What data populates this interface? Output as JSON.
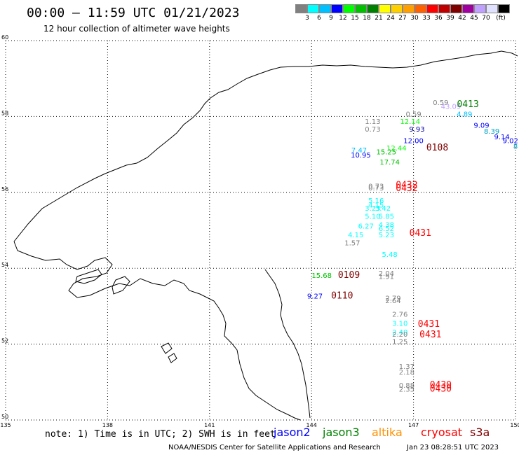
{
  "header": {
    "title": "00:00 – 11:59 UTC 01/21/2023",
    "subtitle": "12 hour collection of altimeter wave heights"
  },
  "legend": {
    "colors": [
      "#808080",
      "#00ffff",
      "#00c0ff",
      "#0000ff",
      "#00ff00",
      "#00c000",
      "#008000",
      "#ffff00",
      "#ffd000",
      "#ffa000",
      "#ff6000",
      "#ff0000",
      "#c00000",
      "#800000",
      "#a000a0",
      "#c0a0ff",
      "#e0e0ff",
      "#000000"
    ],
    "ticks": [
      "3",
      "6",
      "9",
      "12",
      "15",
      "18",
      "21",
      "24",
      "27",
      "30",
      "33",
      "36",
      "39",
      "42",
      "45",
      "70",
      "(ft)"
    ]
  },
  "map": {
    "lat_labels": [
      "60",
      "58",
      "56",
      "54",
      "52",
      "50"
    ],
    "lon_labels": [
      "135",
      "138",
      "141",
      "144",
      "147",
      "150"
    ],
    "observations": [
      {
        "text": "0.59",
        "lon": 147.8,
        "lat": 58.3,
        "color": "#808080"
      },
      {
        "text": "43.09",
        "lon": 148.1,
        "lat": 58.2,
        "color": "#c0a0ff"
      },
      {
        "text": "0.59",
        "lon": 147.0,
        "lat": 58.0,
        "color": "#808080"
      },
      {
        "text": "4.89",
        "lon": 148.5,
        "lat": 58.0,
        "color": "#00c0ff"
      },
      {
        "text": "1.13",
        "lon": 145.8,
        "lat": 57.8,
        "color": "#808080"
      },
      {
        "text": "12.14",
        "lon": 146.9,
        "lat": 57.8,
        "color": "#00ff00"
      },
      {
        "text": "0.73",
        "lon": 145.8,
        "lat": 57.6,
        "color": "#808080"
      },
      {
        "text": "9.93",
        "lon": 147.1,
        "lat": 57.6,
        "color": "#0000a0"
      },
      {
        "text": "9.09",
        "lon": 149.0,
        "lat": 57.7,
        "color": "#0000ff"
      },
      {
        "text": "8.39",
        "lon": 149.3,
        "lat": 57.55,
        "color": "#00a0c0"
      },
      {
        "text": "12.00",
        "lon": 147.0,
        "lat": 57.3,
        "color": "#0000ff"
      },
      {
        "text": "9.14",
        "lon": 149.6,
        "lat": 57.4,
        "color": "#0000ff"
      },
      {
        "text": "9.02",
        "lon": 149.85,
        "lat": 57.3,
        "color": "#0000ff"
      },
      {
        "text": "8",
        "lon": 150.0,
        "lat": 57.15,
        "color": "#00a0c0"
      },
      {
        "text": "7.47",
        "lon": 145.4,
        "lat": 57.05,
        "color": "#00c0ff"
      },
      {
        "text": "12.44",
        "lon": 146.5,
        "lat": 57.1,
        "color": "#00ff00"
      },
      {
        "text": "15.25",
        "lon": 146.2,
        "lat": 57.0,
        "color": "#00c000"
      },
      {
        "text": "10.95",
        "lon": 145.45,
        "lat": 56.92,
        "color": "#0000ff"
      },
      {
        "text": "17.74",
        "lon": 146.3,
        "lat": 56.73,
        "color": "#00c000"
      },
      {
        "text": "0.73",
        "lon": 145.9,
        "lat": 56.1,
        "color": "#808080"
      },
      {
        "text": "0.73",
        "lon": 145.9,
        "lat": 56.05,
        "color": "#808080"
      },
      {
        "text": "5.16",
        "lon": 145.9,
        "lat": 55.72,
        "color": "#00ffff"
      },
      {
        "text": "4.15",
        "lon": 145.9,
        "lat": 55.6,
        "color": "#00ffff"
      },
      {
        "text": "3.23",
        "lon": 145.8,
        "lat": 55.52,
        "color": "#00ffff"
      },
      {
        "text": "3.42",
        "lon": 146.1,
        "lat": 55.52,
        "color": "#00ffff"
      },
      {
        "text": "5.10",
        "lon": 145.8,
        "lat": 55.3,
        "color": "#00ffff"
      },
      {
        "text": "5.85",
        "lon": 146.2,
        "lat": 55.3,
        "color": "#00ffff"
      },
      {
        "text": "6.27",
        "lon": 145.6,
        "lat": 55.05,
        "color": "#00ffff"
      },
      {
        "text": "4.38",
        "lon": 146.2,
        "lat": 55.08,
        "color": "#00ffff"
      },
      {
        "text": "6.52",
        "lon": 146.2,
        "lat": 54.98,
        "color": "#00ffff"
      },
      {
        "text": "4.15",
        "lon": 145.3,
        "lat": 54.82,
        "color": "#00ffff"
      },
      {
        "text": "5.23",
        "lon": 146.2,
        "lat": 54.82,
        "color": "#00ffff"
      },
      {
        "text": "1.57",
        "lon": 145.2,
        "lat": 54.6,
        "color": "#808080"
      },
      {
        "text": "5.48",
        "lon": 146.3,
        "lat": 54.3,
        "color": "#00ffff"
      },
      {
        "text": "15.68",
        "lon": 144.3,
        "lat": 53.75,
        "color": "#00c000"
      },
      {
        "text": "2.04",
        "lon": 146.2,
        "lat": 53.8,
        "color": "#808080"
      },
      {
        "text": "1.91",
        "lon": 146.2,
        "lat": 53.72,
        "color": "#808080"
      },
      {
        "text": "9.27",
        "lon": 144.1,
        "lat": 53.2,
        "color": "#0000ff"
      },
      {
        "text": "2.79",
        "lon": 146.4,
        "lat": 53.15,
        "color": "#808080"
      },
      {
        "text": "2.64",
        "lon": 146.4,
        "lat": 53.08,
        "color": "#808080"
      },
      {
        "text": "2.76",
        "lon": 146.6,
        "lat": 52.72,
        "color": "#808080"
      },
      {
        "text": "3.10",
        "lon": 146.6,
        "lat": 52.48,
        "color": "#00ffff"
      },
      {
        "text": "2.40",
        "lon": 146.6,
        "lat": 52.25,
        "color": "#00ffff"
      },
      {
        "text": "2.20",
        "lon": 146.6,
        "lat": 52.2,
        "color": "#808080"
      },
      {
        "text": "1.25",
        "lon": 146.6,
        "lat": 52.0,
        "color": "#808080"
      },
      {
        "text": "1.37",
        "lon": 146.8,
        "lat": 51.35,
        "color": "#808080"
      },
      {
        "text": "2.18",
        "lon": 146.8,
        "lat": 51.2,
        "color": "#808080"
      },
      {
        "text": "0.88",
        "lon": 146.8,
        "lat": 50.85,
        "color": "#808080"
      },
      {
        "text": "2.35",
        "lon": 146.8,
        "lat": 50.75,
        "color": "#808080"
      }
    ],
    "passes": [
      {
        "text": "0413",
        "lon": 148.6,
        "lat": 58.25,
        "color": "#008000"
      },
      {
        "text": "0108",
        "lon": 147.7,
        "lat": 57.1,
        "color": "#800000"
      },
      {
        "text": "0432",
        "lon": 146.8,
        "lat": 56.12,
        "color": "#ff0000"
      },
      {
        "text": "0432",
        "lon": 146.8,
        "lat": 56.03,
        "color": "#ff0000"
      },
      {
        "text": "0431",
        "lon": 147.2,
        "lat": 54.85,
        "color": "#ff0000"
      },
      {
        "text": "0109",
        "lon": 145.1,
        "lat": 53.75,
        "color": "#800000"
      },
      {
        "text": "0110",
        "lon": 144.9,
        "lat": 53.2,
        "color": "#800000"
      },
      {
        "text": "0431",
        "lon": 147.45,
        "lat": 52.45,
        "color": "#ff0000"
      },
      {
        "text": "0431",
        "lon": 147.5,
        "lat": 52.18,
        "color": "#ff0000"
      },
      {
        "text": "0430",
        "lon": 147.8,
        "lat": 50.85,
        "color": "#ff0000"
      },
      {
        "text": "0430",
        "lon": 147.8,
        "lat": 50.75,
        "color": "#ff0000"
      }
    ]
  },
  "footer": {
    "note": "note: 1) Time is in UTC; 2) SWH is in feet",
    "satellites": [
      {
        "name": "jason2",
        "color": "#0000ff"
      },
      {
        "name": "jason3",
        "color": "#008000"
      },
      {
        "name": "altika",
        "color": "#ff9000"
      },
      {
        "name": "cryosat",
        "color": "#ff0000"
      },
      {
        "name": "s3a",
        "color": "#800000"
      }
    ],
    "credit": "NOAA/NESDIS Center for Satellite Applications and Research",
    "date": "Jan 23 08:28:51 UTC 2023"
  }
}
